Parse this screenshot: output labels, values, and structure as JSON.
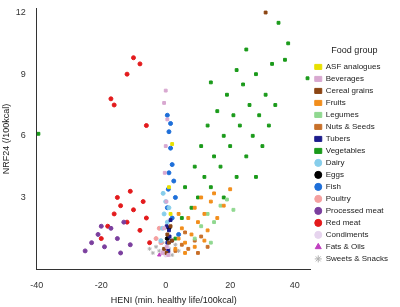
{
  "chart_data": {
    "type": "scatter",
    "x_label": "HENI (min. healthy life/100kcal)",
    "y_label": "NRF24 (/100kcal)",
    "xlim": [
      -40,
      45
    ],
    "xticks": [
      -40,
      -20,
      0,
      20,
      40
    ],
    "ylim": [
      -0.5,
      12.2
    ],
    "yticks": [
      3,
      6,
      9,
      12
    ],
    "grid": false,
    "legend": "right",
    "legend_title": "Food group",
    "series": [
      {
        "name": "ASF analogues",
        "color": "#e8e000",
        "marker": "square",
        "values": [
          [
            2,
            5.6
          ],
          [
            1,
            3.5
          ],
          [
            1.5,
            2.2
          ]
        ]
      },
      {
        "name": "Beverages",
        "color": "#d8a8d0",
        "marker": "square",
        "values": [
          [
            0,
            8.2
          ],
          [
            -0.5,
            7.6
          ],
          [
            0.5,
            6.8
          ],
          [
            0,
            5.5
          ],
          [
            -0.3,
            4.2
          ],
          [
            0.2,
            2.8
          ],
          [
            -0.5,
            1.5
          ],
          [
            0.3,
            0.6
          ],
          [
            -1,
            0.3
          ],
          [
            0.8,
            0.2
          ]
        ]
      },
      {
        "name": "Cereal grains",
        "color": "#8b4513",
        "marker": "square",
        "values": [
          [
            0.5,
            1.2
          ],
          [
            1,
            0.8
          ],
          [
            -0.5,
            0.5
          ],
          [
            1.5,
            1.6
          ],
          [
            0.2,
            0.3
          ],
          [
            2,
            0.9
          ],
          [
            31,
            12
          ]
        ]
      },
      {
        "name": "Fruits",
        "color": "#f28e1c",
        "marker": "square",
        "values": [
          [
            3,
            0.5
          ],
          [
            4,
            1
          ],
          [
            5,
            1.5
          ],
          [
            6,
            0.8
          ],
          [
            7,
            2
          ],
          [
            8,
            1.2
          ],
          [
            9,
            2.5
          ],
          [
            10,
            1.8
          ],
          [
            11,
            3
          ],
          [
            12,
            2.2
          ],
          [
            13,
            1.4
          ],
          [
            14,
            2.8
          ],
          [
            15,
            3.2
          ],
          [
            16,
            2
          ],
          [
            18,
            2.6
          ],
          [
            20,
            3.4
          ],
          [
            6,
            0.3
          ],
          [
            9,
            0.6
          ],
          [
            12,
            0.9
          ],
          [
            4,
            2.2
          ]
        ]
      },
      {
        "name": "Legumes",
        "color": "#90d890",
        "marker": "square",
        "values": [
          [
            9,
            1
          ],
          [
            11,
            1.6
          ],
          [
            13,
            2.2
          ],
          [
            15,
            1.8
          ],
          [
            17,
            2.6
          ],
          [
            19,
            2.9
          ],
          [
            21,
            2.4
          ],
          [
            14,
            0.8
          ]
        ]
      },
      {
        "name": "Nuts & Seeds",
        "color": "#c8702a",
        "marker": "square",
        "values": [
          [
            3,
            0.4
          ],
          [
            5,
            0.7
          ],
          [
            7,
            0.5
          ],
          [
            9,
            0.9
          ],
          [
            11,
            1.1
          ],
          [
            13,
            0.6
          ],
          [
            6,
            1.3
          ],
          [
            10,
            0.3
          ]
        ]
      },
      {
        "name": "Tubers",
        "color": "#1c1c8c",
        "marker": "square",
        "values": [
          [
            0.5,
            0.8
          ],
          [
            1,
            1.4
          ],
          [
            1.5,
            1.9
          ],
          [
            0.8,
            0.4
          ],
          [
            1.2,
            1.1
          ],
          [
            0.3,
            1.6
          ],
          [
            1.8,
            0.9
          ]
        ]
      },
      {
        "name": "Vegetables",
        "color": "#1a9a1a",
        "marker": "square",
        "values": [
          [
            -39.5,
            6.1
          ],
          [
            44,
            8.8
          ],
          [
            38,
            10.5
          ],
          [
            37,
            9.7
          ],
          [
            35,
            11.5
          ],
          [
            3,
            1
          ],
          [
            5,
            2
          ],
          [
            6,
            3.5
          ],
          [
            8,
            2.5
          ],
          [
            9,
            4.5
          ],
          [
            10,
            3
          ],
          [
            11,
            5.5
          ],
          [
            12,
            4
          ],
          [
            13,
            6.5
          ],
          [
            14,
            3.5
          ],
          [
            15,
            5
          ],
          [
            16,
            7.2
          ],
          [
            17,
            4.5
          ],
          [
            18,
            6
          ],
          [
            19,
            8
          ],
          [
            20,
            5.5
          ],
          [
            21,
            7
          ],
          [
            22,
            4
          ],
          [
            23,
            6.5
          ],
          [
            24,
            8.5
          ],
          [
            25,
            5
          ],
          [
            26,
            7.5
          ],
          [
            27,
            6
          ],
          [
            28,
            9
          ],
          [
            29,
            7
          ],
          [
            30,
            5.5
          ],
          [
            31,
            8
          ],
          [
            32,
            6.5
          ],
          [
            33,
            9.5
          ],
          [
            34,
            7.5
          ],
          [
            25,
            10.2
          ],
          [
            22,
            9.2
          ],
          [
            18,
            3
          ],
          [
            14,
            8.6
          ],
          [
            28,
            4
          ]
        ]
      },
      {
        "name": "Dairy",
        "color": "#87ceeb",
        "marker": "circle",
        "values": [
          [
            -1,
            1.5
          ],
          [
            -0.5,
            2.2
          ],
          [
            0,
            2.8
          ],
          [
            0.5,
            1.8
          ],
          [
            -1.5,
            0.9
          ],
          [
            1,
            2.5
          ],
          [
            -0.8,
            3.2
          ]
        ]
      },
      {
        "name": "Eggs",
        "color": "#000000",
        "marker": "circle",
        "values": [
          [
            0.5,
            1
          ],
          [
            1,
            1.5
          ]
        ]
      },
      {
        "name": "Fish",
        "color": "#1e6fd9",
        "marker": "circle",
        "values": [
          [
            0.5,
            7
          ],
          [
            1,
            6.2
          ],
          [
            1.5,
            5.4
          ],
          [
            2,
            4.6
          ],
          [
            2.5,
            3.8
          ],
          [
            3,
            3
          ],
          [
            1,
            4.2
          ],
          [
            0.5,
            2.5
          ],
          [
            2,
            2
          ],
          [
            4,
            1.2
          ],
          [
            1.5,
            6.6
          ],
          [
            0.8,
            3.4
          ]
        ]
      },
      {
        "name": "Poultry",
        "color": "#f4a0a0",
        "marker": "circle",
        "values": [
          [
            -2,
            1.5
          ],
          [
            -3,
            1
          ],
          [
            -1.5,
            0.8
          ]
        ]
      },
      {
        "name": "Processed meat",
        "color": "#7b3f9e",
        "marker": "circle",
        "values": [
          [
            -25,
            0.4
          ],
          [
            -23,
            0.8
          ],
          [
            -21,
            1.2
          ],
          [
            -19,
            0.6
          ],
          [
            -17,
            1.5
          ],
          [
            -15,
            1
          ],
          [
            -13,
            1.8
          ],
          [
            -11,
            0.7
          ],
          [
            -20,
            1.6
          ],
          [
            -14,
            0.3
          ]
        ]
      },
      {
        "name": "Red meat",
        "color": "#e31a1c",
        "marker": "circle",
        "values": [
          [
            -20,
            1
          ],
          [
            -18,
            1.6
          ],
          [
            -16,
            2.2
          ],
          [
            -14,
            2.6
          ],
          [
            -12,
            1.8
          ],
          [
            -10,
            2.4
          ],
          [
            -8,
            1.4
          ],
          [
            -6,
            2
          ],
          [
            -5,
            0.8
          ],
          [
            -15,
            3
          ],
          [
            -11,
            3.3
          ],
          [
            -7,
            2.8
          ],
          [
            -10,
            9.8
          ],
          [
            -8,
            9.5
          ],
          [
            -12,
            9
          ],
          [
            -17,
            7.8
          ],
          [
            -16,
            7.5
          ],
          [
            -6,
            6.5
          ]
        ]
      },
      {
        "name": "Condiments",
        "color": "#e6d4ee",
        "marker": "circle",
        "values": [
          [
            0,
            0.2
          ],
          [
            -1,
            0.4
          ],
          [
            1,
            0.3
          ],
          [
            0.5,
            0.6
          ]
        ]
      },
      {
        "name": "Fats & Oils",
        "color": "#c040c0",
        "marker": "triangle",
        "values": [
          [
            -1,
            0.3
          ],
          [
            0.5,
            0.5
          ],
          [
            -2,
            0.2
          ]
        ]
      },
      {
        "name": "Sweets & Snacks",
        "color": "#b0b0b0",
        "marker": "star",
        "values": [
          [
            -4,
            0.3
          ],
          [
            -3,
            0.6
          ],
          [
            -2,
            0.4
          ],
          [
            -1,
            0.8
          ],
          [
            1,
            0.5
          ],
          [
            2,
            0.2
          ],
          [
            3,
            0.7
          ],
          [
            4,
            0.4
          ],
          [
            -5,
            0.5
          ]
        ]
      }
    ]
  }
}
